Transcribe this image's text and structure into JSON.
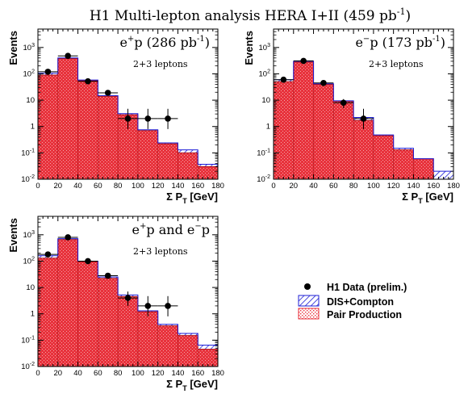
{
  "figure_title": "H1 Multi-lepton analysis   HERA I+II (459 pb",
  "figure_title_sup": "-1",
  "figure_title_end": ")",
  "colors": {
    "pair_fill": "#e8323c",
    "pair_hatch": "#ffffff",
    "dis_hatch": "#1f1fd6",
    "data": "#000000"
  },
  "legend": {
    "data_label": "H1 Data (prelim.)",
    "dis_label": "DIS+Compton",
    "pair_label": "Pair Production"
  },
  "chart_data": [
    {
      "type": "bar",
      "panel_title_base": "e",
      "panel_title_sup": "+",
      "panel_title_rest": "p (286 pb",
      "panel_title_sup2": "-1",
      "panel_title_end": ")",
      "annotation": "2+3 leptons",
      "xlabel": "Σ P",
      "xlabel_sub": "T",
      "xlabel_unit": " [GeV]",
      "ylabel": "Events",
      "log_y": true,
      "xlim": [
        0,
        180
      ],
      "ylim": [
        0.01,
        5000
      ],
      "x_ticks": [
        "0",
        "20",
        "40",
        "60",
        "80",
        "100",
        "120",
        "140",
        "160",
        "180"
      ],
      "bin_edges": [
        0,
        20,
        40,
        60,
        80,
        100,
        120,
        140,
        160,
        180
      ],
      "series": [
        {
          "name": "Pair Production",
          "values": [
            90,
            380,
            55,
            14,
            2.8,
            0.7,
            0.22,
            0.1,
            0.03
          ]
        },
        {
          "name": "DIS+Compton",
          "values": [
            105,
            400,
            58,
            15,
            3.1,
            0.75,
            0.24,
            0.13,
            0.037
          ]
        }
      ],
      "data_points": [
        {
          "x": 10,
          "y": 120,
          "err_lo": 11,
          "err_hi": 11
        },
        {
          "x": 30,
          "y": 480,
          "err_lo": 22,
          "err_hi": 22
        },
        {
          "x": 50,
          "y": 52,
          "err_lo": 7,
          "err_hi": 7
        },
        {
          "x": 70,
          "y": 19,
          "err_lo": 4,
          "err_hi": 4
        },
        {
          "x": 90,
          "y": 2,
          "err_lo": 1.2,
          "err_hi": 2.7
        },
        {
          "x": 110,
          "y": 2,
          "err_lo": 1.2,
          "err_hi": 2.7
        },
        {
          "x": 130,
          "y": 2,
          "err_lo": 1.2,
          "err_hi": 2.7
        }
      ]
    },
    {
      "type": "bar",
      "panel_title_base": "e",
      "panel_title_sup": "−",
      "panel_title_rest": "p (173 pb",
      "panel_title_sup2": "-1",
      "panel_title_end": ")",
      "annotation": "2+3 leptons",
      "xlabel": "Σ P",
      "xlabel_sub": "T",
      "xlabel_unit": " [GeV]",
      "ylabel": "Events",
      "log_y": true,
      "xlim": [
        0,
        180
      ],
      "ylim": [
        0.01,
        5000
      ],
      "x_ticks": [
        "0",
        "20",
        "40",
        "60",
        "80",
        "100",
        "120",
        "140",
        "160",
        "180"
      ],
      "bin_edges": [
        0,
        20,
        40,
        60,
        80,
        100,
        120,
        140,
        160,
        180
      ],
      "series": [
        {
          "name": "Pair Production",
          "values": [
            50,
            280,
            40,
            9,
            1.7,
            0.45,
            0.13,
            0.06,
            0.01
          ]
        },
        {
          "name": "DIS+Compton",
          "values": [
            60,
            300,
            42,
            9.5,
            2.2,
            0.48,
            0.15,
            0.06,
            0.02
          ]
        }
      ],
      "data_points": [
        {
          "x": 10,
          "y": 60,
          "err_lo": 8,
          "err_hi": 8
        },
        {
          "x": 30,
          "y": 310,
          "err_lo": 18,
          "err_hi": 18
        },
        {
          "x": 50,
          "y": 45,
          "err_lo": 7,
          "err_hi": 7
        },
        {
          "x": 70,
          "y": 8,
          "err_lo": 3,
          "err_hi": 3
        },
        {
          "x": 90,
          "y": 2,
          "err_lo": 1.2,
          "err_hi": 2.7
        }
      ]
    },
    {
      "type": "bar",
      "panel_title_base": "e",
      "panel_title_sup": "+",
      "panel_title_rest": "p and e",
      "panel_title_sup2": "−",
      "panel_title_end": "p",
      "annotation": "2+3 leptons",
      "xlabel": "Σ P",
      "xlabel_sub": "T",
      "xlabel_unit": " [GeV]",
      "ylabel": "Events",
      "log_y": true,
      "xlim": [
        0,
        180
      ],
      "ylim": [
        0.01,
        5000
      ],
      "x_ticks": [
        "0",
        "20",
        "40",
        "60",
        "80",
        "100",
        "120",
        "140",
        "160",
        "180"
      ],
      "bin_edges": [
        0,
        20,
        40,
        60,
        80,
        100,
        120,
        140,
        160,
        180
      ],
      "series": [
        {
          "name": "Pair Production",
          "values": [
            130,
            660,
            95,
            22,
            4.5,
            1.2,
            0.35,
            0.15,
            0.045
          ]
        },
        {
          "name": "DIS+Compton",
          "values": [
            160,
            710,
            100,
            25,
            5.2,
            1.3,
            0.4,
            0.18,
            0.065
          ]
        }
      ],
      "data_points": [
        {
          "x": 10,
          "y": 180,
          "err_lo": 13,
          "err_hi": 13
        },
        {
          "x": 30,
          "y": 800,
          "err_lo": 28,
          "err_hi": 28
        },
        {
          "x": 50,
          "y": 100,
          "err_lo": 10,
          "err_hi": 10
        },
        {
          "x": 70,
          "y": 28,
          "err_lo": 5,
          "err_hi": 5
        },
        {
          "x": 90,
          "y": 4,
          "err_lo": 2,
          "err_hi": 3
        },
        {
          "x": 110,
          "y": 2,
          "err_lo": 1.2,
          "err_hi": 2.7
        },
        {
          "x": 130,
          "y": 2,
          "err_lo": 1.2,
          "err_hi": 2.7
        }
      ]
    }
  ]
}
